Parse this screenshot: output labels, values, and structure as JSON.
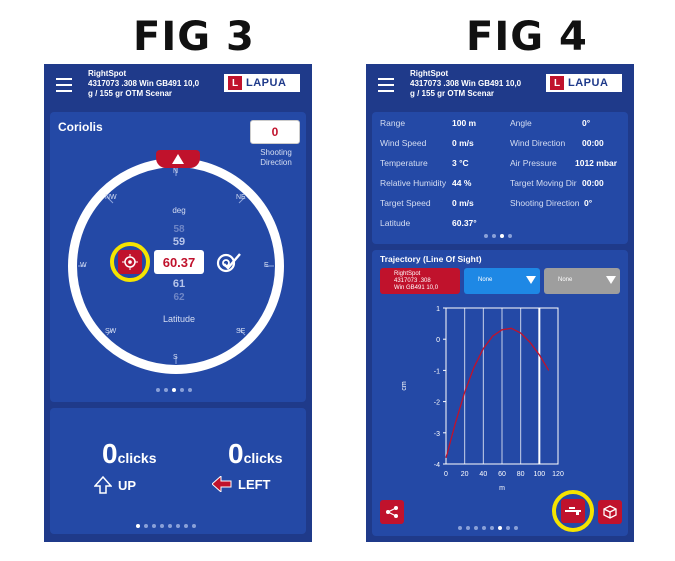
{
  "fig3": {
    "caption": "FIG 3",
    "header": {
      "line1": "RightSpot",
      "line2": "4317073 .308 Win GB491 10,0",
      "line3": "g / 155 gr  OTM Scenar",
      "logo_letter": "L",
      "logo_text": "LAPUA"
    },
    "coriolis": {
      "title": "Coriolis",
      "shooting_direction_value": "0",
      "shooting_direction_label_1": "Shooting",
      "shooting_direction_label_2": "Direction",
      "compass": {
        "n": "N",
        "ne": "NE",
        "e": "E",
        "se": "SE",
        "s": "S",
        "sw": "SW",
        "w": "W",
        "nw": "NW"
      },
      "unit": "deg",
      "wheel_above": [
        "58",
        "59"
      ],
      "latitude_value": "60.37",
      "wheel_below": [
        "61",
        "62"
      ],
      "latitude_label": "Latitude"
    },
    "clicks": {
      "left": {
        "value": "0",
        "unit": "clicks",
        "direction": "UP"
      },
      "right": {
        "value": "0",
        "unit": "clicks",
        "direction": "LEFT"
      }
    },
    "colors": {
      "accent": "#c0122c",
      "panel": "#2449a6",
      "background": "#1f3a8a",
      "highlight": "#f5e400"
    }
  },
  "fig4": {
    "caption": "FIG 4",
    "header": {
      "line1": "RightSpot",
      "line2": "4317073 .308 Win GB491 10,0",
      "line3": "g / 155 gr  OTM Scenar",
      "logo_letter": "L",
      "logo_text": "LAPUA"
    },
    "conditions": {
      "left": [
        {
          "label": "Range",
          "value": "100 m"
        },
        {
          "label": "Wind Speed",
          "value": "0 m/s"
        },
        {
          "label": "Temperature",
          "value": "3 °C"
        },
        {
          "label": "Relative Humidity",
          "value": "44 %"
        },
        {
          "label": "Target Speed",
          "value": "0 m/s"
        },
        {
          "label": "Latitude",
          "value": "60.37°"
        }
      ],
      "right": [
        {
          "label": "Angle",
          "value": "0°"
        },
        {
          "label": "Wind Direction",
          "value": "00:00"
        },
        {
          "label": "Air Pressure",
          "value": "1012 mbar"
        },
        {
          "label": "Target Moving Dir",
          "value": "00:00"
        },
        {
          "label": "Shooting Direction",
          "value": "0°"
        }
      ]
    },
    "trajectory": {
      "title": "Trajectory (Line Of Sight)",
      "selector_1": {
        "line1": "RightSpot",
        "line2": "4317073 .308",
        "line3": "Win GB491 10,0"
      },
      "selector_2": "None",
      "selector_3": "None"
    }
  },
  "chart_data": {
    "type": "line",
    "title": "",
    "xlabel": "m",
    "ylabel": "cm",
    "xlim": [
      0,
      120
    ],
    "ylim": [
      -4,
      1
    ],
    "x_ticks": [
      "0",
      "20",
      "40",
      "60",
      "80",
      "100",
      "120"
    ],
    "y_ticks": [
      "1",
      "0",
      "-1",
      "-2",
      "-3",
      "-4"
    ],
    "grid": "vertical",
    "marker_x": 100,
    "series": [
      {
        "x": [
          0,
          10,
          20,
          30,
          40,
          50,
          60,
          70,
          80,
          90,
          100,
          110
        ],
        "y": [
          -3.8,
          -2.7,
          -1.7,
          -0.9,
          -0.3,
          0.1,
          0.3,
          0.35,
          0.2,
          -0.1,
          -0.5,
          -1.0
        ],
        "color": "#c0122c"
      }
    ]
  }
}
